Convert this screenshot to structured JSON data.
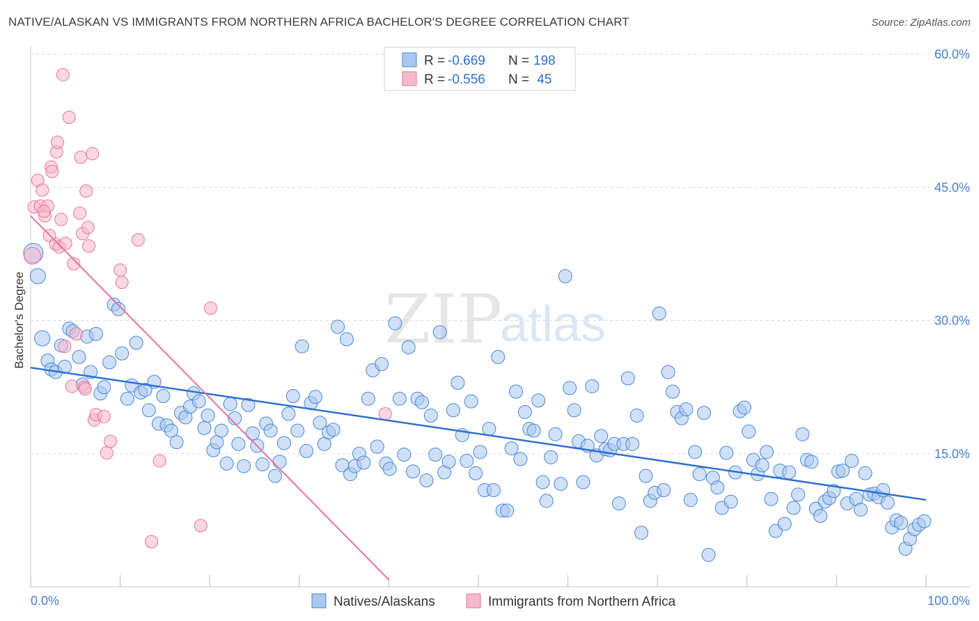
{
  "title": "NATIVE/ALASKAN VS IMMIGRANTS FROM NORTHERN AFRICA BACHELOR'S DEGREE CORRELATION CHART",
  "source": "Source: ZipAtlas.com",
  "watermark": {
    "zip": "ZIP",
    "atlas": "atlas"
  },
  "colors": {
    "blue": "#4a85d8",
    "blue_fill": "#a9c8f0",
    "pink": "#e8739a",
    "pink_fill": "#f5b8cb",
    "grid": "#d9d9d9",
    "tick_text": "#4a7fcf"
  },
  "legend": {
    "rows": [
      {
        "r_label": "R = ",
        "r_value": "-0.669",
        "n_label": "N = ",
        "n_value": "198"
      },
      {
        "r_label": "R = ",
        "r_value": "-0.556",
        "n_label": "N = ",
        "n_value": " 45"
      }
    ]
  },
  "bottom_legend": [
    {
      "label": "Natives/Alaskans"
    },
    {
      "label": "Immigrants from Northern Africa"
    }
  ],
  "chart_data": {
    "type": "scatter",
    "title": "NATIVE/ALASKAN VS IMMIGRANTS FROM NORTHERN AFRICA BACHELOR'S DEGREE CORRELATION CHART",
    "xlabel": "",
    "ylabel": "Bachelor's Degree",
    "xlim": [
      0,
      100
    ],
    "ylim": [
      0,
      60
    ],
    "x_tick_labels": {
      "min": "0.0%",
      "max": "100.0%"
    },
    "y_ticks": [
      {
        "value": 15,
        "label": "15.0%"
      },
      {
        "value": 30,
        "label": "30.0%"
      },
      {
        "value": 45,
        "label": "45.0%"
      },
      {
        "value": 60,
        "label": "60.0%"
      }
    ],
    "grid": true,
    "legend_position": "top-center",
    "series": [
      {
        "name": "Natives/Alaskans",
        "color": "#4a85d8",
        "trend": {
          "x": [
            0,
            100
          ],
          "y": [
            24.7,
            9.8
          ]
        },
        "points": [
          [
            0.3,
            37.6
          ],
          [
            0.8,
            35.0
          ],
          [
            1.3,
            28.0
          ],
          [
            1.9,
            25.5
          ],
          [
            2.3,
            24.5
          ],
          [
            2.8,
            24.2
          ],
          [
            3.4,
            27.2
          ],
          [
            3.8,
            24.8
          ],
          [
            4.3,
            29.1
          ],
          [
            4.7,
            28.8
          ],
          [
            5.4,
            25.9
          ],
          [
            5.8,
            22.8
          ],
          [
            6.3,
            28.2
          ],
          [
            6.7,
            24.2
          ],
          [
            7.3,
            28.5
          ],
          [
            7.8,
            21.8
          ],
          [
            8.2,
            22.5
          ],
          [
            8.8,
            25.3
          ],
          [
            9.3,
            31.8
          ],
          [
            9.8,
            31.3
          ],
          [
            10.2,
            26.3
          ],
          [
            10.8,
            21.2
          ],
          [
            11.3,
            22.7
          ],
          [
            11.8,
            27.5
          ],
          [
            12.3,
            21.9
          ],
          [
            12.8,
            22.2
          ],
          [
            13.2,
            19.9
          ],
          [
            13.8,
            23.1
          ],
          [
            14.3,
            18.4
          ],
          [
            14.8,
            21.5
          ],
          [
            15.2,
            18.2
          ],
          [
            15.7,
            17.6
          ],
          [
            16.3,
            16.3
          ],
          [
            16.8,
            19.6
          ],
          [
            17.3,
            19.1
          ],
          [
            17.8,
            20.3
          ],
          [
            18.2,
            21.8
          ],
          [
            18.8,
            20.9
          ],
          [
            19.4,
            17.9
          ],
          [
            19.8,
            19.3
          ],
          [
            20.4,
            15.4
          ],
          [
            20.8,
            16.3
          ],
          [
            21.3,
            17.6
          ],
          [
            21.9,
            13.9
          ],
          [
            22.3,
            20.6
          ],
          [
            22.8,
            19.0
          ],
          [
            23.2,
            16.1
          ],
          [
            23.8,
            13.6
          ],
          [
            24.3,
            20.5
          ],
          [
            24.8,
            17.3
          ],
          [
            25.3,
            15.9
          ],
          [
            25.9,
            13.8
          ],
          [
            26.3,
            18.4
          ],
          [
            26.8,
            17.6
          ],
          [
            27.3,
            12.5
          ],
          [
            27.8,
            14.1
          ],
          [
            28.3,
            16.2
          ],
          [
            28.8,
            19.5
          ],
          [
            29.3,
            21.5
          ],
          [
            29.8,
            17.6
          ],
          [
            30.3,
            27.1
          ],
          [
            30.8,
            15.3
          ],
          [
            31.3,
            20.7
          ],
          [
            31.8,
            21.4
          ],
          [
            32.3,
            18.5
          ],
          [
            32.8,
            16.1
          ],
          [
            33.3,
            17.4
          ],
          [
            33.8,
            17.7
          ],
          [
            34.3,
            29.3
          ],
          [
            34.8,
            13.7
          ],
          [
            35.3,
            27.9
          ],
          [
            35.7,
            12.7
          ],
          [
            36.2,
            13.6
          ],
          [
            36.7,
            15.0
          ],
          [
            37.2,
            14.0
          ],
          [
            37.7,
            21.2
          ],
          [
            38.2,
            24.4
          ],
          [
            38.7,
            15.8
          ],
          [
            39.2,
            25.1
          ],
          [
            39.7,
            13.9
          ],
          [
            40.1,
            13.3
          ],
          [
            40.7,
            29.7
          ],
          [
            41.2,
            21.2
          ],
          [
            41.7,
            14.9
          ],
          [
            42.2,
            27.0
          ],
          [
            42.7,
            13.0
          ],
          [
            43.2,
            21.2
          ],
          [
            43.7,
            20.8
          ],
          [
            44.2,
            12.0
          ],
          [
            44.7,
            19.3
          ],
          [
            45.2,
            14.9
          ],
          [
            45.7,
            28.7
          ],
          [
            46.2,
            12.9
          ],
          [
            46.7,
            14.1
          ],
          [
            47.2,
            19.9
          ],
          [
            47.7,
            23.0
          ],
          [
            48.2,
            17.1
          ],
          [
            48.7,
            14.2
          ],
          [
            49.2,
            20.9
          ],
          [
            49.7,
            12.8
          ],
          [
            50.2,
            15.2
          ],
          [
            50.7,
            10.9
          ],
          [
            51.2,
            17.8
          ],
          [
            51.7,
            10.9
          ],
          [
            52.2,
            25.9
          ],
          [
            52.7,
            8.6
          ],
          [
            53.2,
            8.6
          ],
          [
            53.7,
            15.6
          ],
          [
            54.2,
            22.0
          ],
          [
            54.7,
            14.4
          ],
          [
            55.2,
            19.7
          ],
          [
            55.7,
            17.8
          ],
          [
            56.2,
            17.6
          ],
          [
            56.7,
            21.0
          ],
          [
            57.2,
            11.8
          ],
          [
            57.6,
            9.7
          ],
          [
            58.1,
            14.6
          ],
          [
            58.6,
            17.2
          ],
          [
            59.2,
            11.6
          ],
          [
            59.7,
            35.0
          ],
          [
            60.2,
            22.4
          ],
          [
            60.7,
            19.9
          ],
          [
            61.2,
            16.4
          ],
          [
            61.7,
            11.8
          ],
          [
            62.2,
            15.9
          ],
          [
            62.7,
            22.6
          ],
          [
            63.2,
            14.8
          ],
          [
            63.7,
            17.0
          ],
          [
            64.2,
            15.5
          ],
          [
            64.7,
            15.4
          ],
          [
            65.2,
            16.1
          ],
          [
            65.7,
            9.4
          ],
          [
            66.2,
            16.1
          ],
          [
            66.7,
            23.5
          ],
          [
            67.2,
            16.1
          ],
          [
            67.7,
            19.3
          ],
          [
            68.2,
            6.1
          ],
          [
            68.7,
            12.5
          ],
          [
            69.2,
            9.7
          ],
          [
            69.7,
            10.6
          ],
          [
            70.2,
            30.8
          ],
          [
            70.7,
            10.9
          ],
          [
            71.2,
            24.2
          ],
          [
            71.7,
            22.0
          ],
          [
            72.2,
            19.7
          ],
          [
            72.7,
            19.0
          ],
          [
            73.2,
            20.0
          ],
          [
            73.7,
            9.8
          ],
          [
            74.2,
            15.2
          ],
          [
            74.7,
            12.7
          ],
          [
            75.2,
            19.6
          ],
          [
            75.7,
            3.6
          ],
          [
            76.2,
            12.3
          ],
          [
            76.7,
            11.2
          ],
          [
            77.2,
            8.9
          ],
          [
            77.7,
            15.1
          ],
          [
            78.2,
            9.6
          ],
          [
            78.7,
            12.9
          ],
          [
            79.2,
            19.8
          ],
          [
            79.7,
            20.2
          ],
          [
            80.2,
            17.5
          ],
          [
            80.7,
            14.3
          ],
          [
            81.2,
            12.7
          ],
          [
            81.7,
            13.7
          ],
          [
            82.2,
            15.2
          ],
          [
            82.7,
            9.9
          ],
          [
            83.2,
            6.3
          ],
          [
            83.7,
            13.1
          ],
          [
            84.2,
            7.1
          ],
          [
            84.7,
            12.9
          ],
          [
            85.2,
            8.9
          ],
          [
            85.7,
            10.4
          ],
          [
            86.2,
            17.2
          ],
          [
            86.7,
            14.3
          ],
          [
            87.2,
            14.1
          ],
          [
            87.7,
            8.8
          ],
          [
            88.2,
            8.0
          ],
          [
            88.7,
            9.6
          ],
          [
            89.2,
            10.0
          ],
          [
            89.7,
            10.8
          ],
          [
            90.2,
            13.0
          ],
          [
            90.7,
            13.1
          ],
          [
            91.2,
            9.4
          ],
          [
            91.7,
            14.2
          ],
          [
            92.2,
            9.9
          ],
          [
            92.7,
            8.7
          ],
          [
            93.2,
            12.8
          ],
          [
            93.7,
            10.4
          ],
          [
            94.2,
            10.5
          ],
          [
            94.7,
            10.1
          ],
          [
            95.2,
            10.9
          ],
          [
            95.7,
            9.5
          ],
          [
            96.2,
            6.7
          ],
          [
            96.7,
            7.5
          ],
          [
            97.2,
            7.2
          ],
          [
            97.7,
            4.3
          ],
          [
            98.2,
            5.4
          ],
          [
            98.7,
            6.5
          ],
          [
            99.2,
            7.0
          ],
          [
            99.8,
            7.4
          ]
        ]
      },
      {
        "name": "Immigrants from Northern Africa",
        "color": "#e8739a",
        "trend": {
          "x": [
            0,
            40
          ],
          "y": [
            41.8,
            0.8
          ]
        },
        "points": [
          [
            0.2,
            37.3
          ],
          [
            0.4,
            42.8
          ],
          [
            0.8,
            45.8
          ],
          [
            1.1,
            42.9
          ],
          [
            1.3,
            44.7
          ],
          [
            1.6,
            41.8
          ],
          [
            1.9,
            42.9
          ],
          [
            2.1,
            39.6
          ],
          [
            2.3,
            47.3
          ],
          [
            2.4,
            46.8
          ],
          [
            2.8,
            38.6
          ],
          [
            2.9,
            49.0
          ],
          [
            3.0,
            50.1
          ],
          [
            3.2,
            38.3
          ],
          [
            3.4,
            41.4
          ],
          [
            3.6,
            57.7
          ],
          [
            3.8,
            27.1
          ],
          [
            3.9,
            38.7
          ],
          [
            4.3,
            52.9
          ],
          [
            4.6,
            22.6
          ],
          [
            4.8,
            36.4
          ],
          [
            5.1,
            28.5
          ],
          [
            5.5,
            42.1
          ],
          [
            5.6,
            48.4
          ],
          [
            5.8,
            39.8
          ],
          [
            6.0,
            22.5
          ],
          [
            6.2,
            44.6
          ],
          [
            6.4,
            40.5
          ],
          [
            6.5,
            38.4
          ],
          [
            6.9,
            48.8
          ],
          [
            7.1,
            18.8
          ],
          [
            7.3,
            19.4
          ],
          [
            8.2,
            19.2
          ],
          [
            8.5,
            15.1
          ],
          [
            8.9,
            16.4
          ],
          [
            10.0,
            35.7
          ],
          [
            10.2,
            34.3
          ],
          [
            12.0,
            39.1
          ],
          [
            13.5,
            5.1
          ],
          [
            14.4,
            14.2
          ],
          [
            19.0,
            6.9
          ],
          [
            20.1,
            31.4
          ],
          [
            39.6,
            19.5
          ],
          [
            6.1,
            22.3
          ],
          [
            1.5,
            42.3
          ]
        ]
      }
    ]
  }
}
